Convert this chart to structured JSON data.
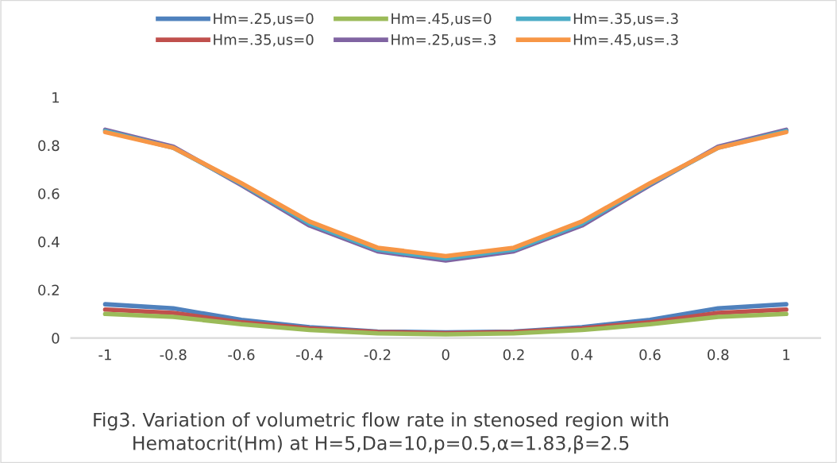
{
  "chart_data": {
    "type": "line",
    "categories": [
      "-1",
      "-0.8",
      "-0.6",
      "-0.4",
      "-0.2",
      "0",
      "0.2",
      "0.4",
      "0.6",
      "0.8",
      "1"
    ],
    "series": [
      {
        "name": "Hm=.25,us=0",
        "color": "#4f81bd",
        "values": [
          0.14,
          0.123,
          0.075,
          0.045,
          0.027,
          0.023,
          0.027,
          0.045,
          0.075,
          0.123,
          0.14
        ]
      },
      {
        "name": "Hm=.35,us=0",
        "color": "#c0504d",
        "values": [
          0.118,
          0.104,
          0.065,
          0.04,
          0.025,
          0.02,
          0.025,
          0.04,
          0.065,
          0.104,
          0.118
        ]
      },
      {
        "name": "Hm=.45,us=0",
        "color": "#9bbb59",
        "values": [
          0.1,
          0.088,
          0.057,
          0.033,
          0.019,
          0.015,
          0.019,
          0.033,
          0.057,
          0.088,
          0.1
        ]
      },
      {
        "name": "Hm=.25,us=.3",
        "color": "#8064a2",
        "values": [
          0.865,
          0.795,
          0.635,
          0.467,
          0.36,
          0.322,
          0.36,
          0.467,
          0.635,
          0.795,
          0.865
        ]
      },
      {
        "name": "Hm=.35,us=.3",
        "color": "#4bacc6",
        "values": [
          0.86,
          0.79,
          0.64,
          0.475,
          0.367,
          0.33,
          0.367,
          0.475,
          0.64,
          0.79,
          0.86
        ]
      },
      {
        "name": "Hm=.45,us=.3",
        "color": "#f79646",
        "values": [
          0.855,
          0.79,
          0.643,
          0.484,
          0.375,
          0.34,
          0.375,
          0.484,
          0.643,
          0.79,
          0.855
        ]
      }
    ],
    "ylim": [
      0,
      1
    ],
    "yticks": [
      0,
      0.2,
      0.4,
      0.6,
      0.8,
      1
    ],
    "grid": false,
    "legend": "top",
    "marker": "none",
    "line_style": "solid",
    "annotations": [
      "Fig3. Variation of volumetric flow rate in stenosed region with\nHematocrit(Hm) at H=5,Da=10,p=0.5,α=1.83,β=2.5"
    ]
  }
}
